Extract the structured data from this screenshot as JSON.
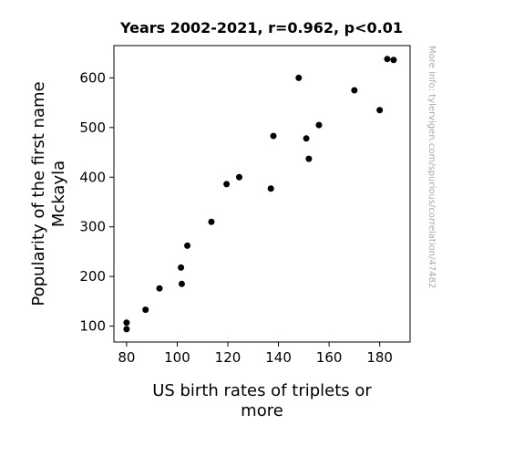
{
  "chart_data": {
    "type": "scatter",
    "title": "Years 2002-2021, r=0.962, p<0.01",
    "xlabel_lines": [
      "US birth rates of triplets or",
      "more"
    ],
    "ylabel_lines": [
      "Popularity of the first name",
      "Mckayla"
    ],
    "xlim": [
      75,
      192
    ],
    "ylim": [
      68,
      665
    ],
    "xticks": [
      80,
      100,
      120,
      140,
      160,
      180
    ],
    "yticks": [
      100,
      200,
      300,
      400,
      500,
      600
    ],
    "grid": false,
    "marker_color": "#000000",
    "points": [
      {
        "x": 80,
        "y": 107
      },
      {
        "x": 80,
        "y": 94
      },
      {
        "x": 87.5,
        "y": 133
      },
      {
        "x": 93,
        "y": 176
      },
      {
        "x": 101.5,
        "y": 218
      },
      {
        "x": 101.8,
        "y": 185
      },
      {
        "x": 104,
        "y": 262
      },
      {
        "x": 113.5,
        "y": 310
      },
      {
        "x": 119.5,
        "y": 386
      },
      {
        "x": 124.5,
        "y": 400
      },
      {
        "x": 137,
        "y": 377
      },
      {
        "x": 138,
        "y": 483
      },
      {
        "x": 148,
        "y": 600
      },
      {
        "x": 151,
        "y": 478
      },
      {
        "x": 152,
        "y": 437
      },
      {
        "x": 156,
        "y": 505
      },
      {
        "x": 170,
        "y": 575
      },
      {
        "x": 180,
        "y": 535
      },
      {
        "x": 183,
        "y": 638
      },
      {
        "x": 185.5,
        "y": 636
      }
    ]
  },
  "watermark": "More info: tylervigen.com/spurious/correlation/47482"
}
